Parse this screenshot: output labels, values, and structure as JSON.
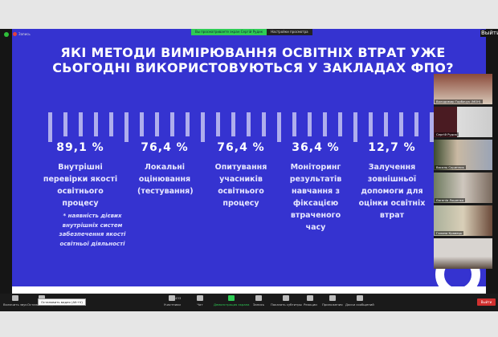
{
  "zoom": {
    "recording": "Запись",
    "viewing_banner": "Вы просматриваете экран Сергій Рудик",
    "view_options": "Настройки просмотра",
    "exit_fullscreen": "Выйти"
  },
  "slide": {
    "title": "ЯКІ МЕТОДИ ВИМІРЮВАННЯ ОСВІТНІХ ВТРАТ УЖЕ СЬОГОДНІ ВИКОРИСТОВУЮТЬСЯ У ЗАКЛАДАХ ФПО?",
    "items": [
      {
        "percent": "89,1 %",
        "label": "Внутрішні перевірки якості освітнього процесу"
      },
      {
        "percent": "76,4 %",
        "label": "Локальні оцінювання (тестування)"
      },
      {
        "percent": "76,4 %",
        "label": "Опитування учасників освітнього процесу"
      },
      {
        "percent": "36,4 %",
        "label": "Моніторинг результатів навчання з фіксацією втраченого часу"
      },
      {
        "percent": "12,7 %",
        "label": "Залучення зовнішньої допомоги для оцінки освітніх втрат"
      }
    ],
    "footnote": "* наявність дієвих внутрішніх систем забезпечення якості освітньої діяльності",
    "accent": "#3533d0"
  },
  "participants": [
    {
      "name": "Володимир Горбачук (МОН)"
    },
    {
      "name": "Сергій Рудик"
    },
    {
      "name": "Василь Скрипник"
    },
    {
      "name": "Євгенія Ляшенко"
    },
    {
      "name": "Галина Кравець"
    },
    {
      "name": ""
    }
  ],
  "toolbar": {
    "unmute": "Включить звук",
    "stop_video": "Остановить видео",
    "participants": "Участники",
    "participants_count": "433",
    "chat": "Чат",
    "share": "Демонстрация экрана",
    "record": "Запись",
    "captions": "Показать субтитры",
    "reactions": "Реакции",
    "apps": "Приложения",
    "whiteboard": "Доски сообщений",
    "leave": "Выйти",
    "tooltip": "Остановить видео (Alt+V)"
  }
}
